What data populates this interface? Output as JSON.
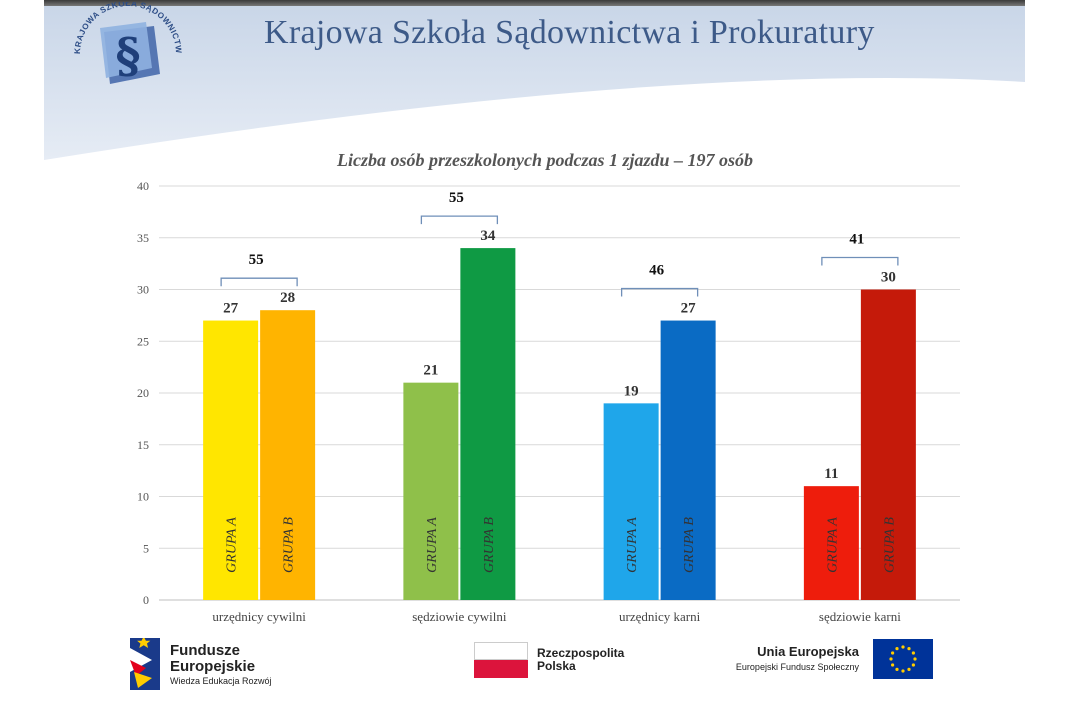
{
  "header": {
    "title": "Krajowa Szkoła Sądownictwa i Prokuratury",
    "logo_ring_text": "KRAJOWA SZKOŁA SĄDOWNICTWA I PROKURATURY",
    "logo_symbol": "§"
  },
  "chart_data": {
    "type": "bar",
    "title": "Liczba osób przeszkolonych podczas 1 zjazdu – 197 osób",
    "xlabel": "",
    "ylabel": "",
    "ylim": [
      0,
      40
    ],
    "yticks": [
      "0",
      "5",
      "10",
      "15",
      "20",
      "25",
      "30",
      "35",
      "40"
    ],
    "grid": true,
    "categories": [
      "urzędnicy cywilni",
      "sędziowie cywilni",
      "urzędnicy karni",
      "sędziowie karni"
    ],
    "series": [
      {
        "name": "GRUPA A",
        "values": [
          27,
          21,
          19,
          11
        ],
        "colors": [
          "#ffe600",
          "#8fc04a",
          "#1fa6ea",
          "#ee1d0c"
        ]
      },
      {
        "name": "GRUPA B",
        "values": [
          28,
          34,
          27,
          30
        ],
        "colors": [
          "#ffb400",
          "#0f9a44",
          "#0a6bc4",
          "#c51a0a"
        ]
      }
    ],
    "value_labels": [
      [
        "27",
        "28"
      ],
      [
        "21",
        "34"
      ],
      [
        "19",
        "27"
      ],
      [
        "11",
        "30"
      ]
    ],
    "group_totals": [
      "55",
      "55",
      "46",
      "41"
    ]
  },
  "footer": {
    "fe_line1": "Fundusze",
    "fe_line2": "Europejskie",
    "fe_line3": "Wiedza Edukacja Rozwój",
    "rp_line1": "Rzeczpospolita",
    "rp_line2": "Polska",
    "ue_line1": "Unia Europejska",
    "ue_line2": "Europejski Fundusz Społeczny"
  },
  "colors": {
    "header_blue": "#3d5a88",
    "header_band": "#d6e0ee",
    "poland_red": "#dc143c",
    "eu_blue": "#003399",
    "eu_star": "#ffcc00"
  }
}
